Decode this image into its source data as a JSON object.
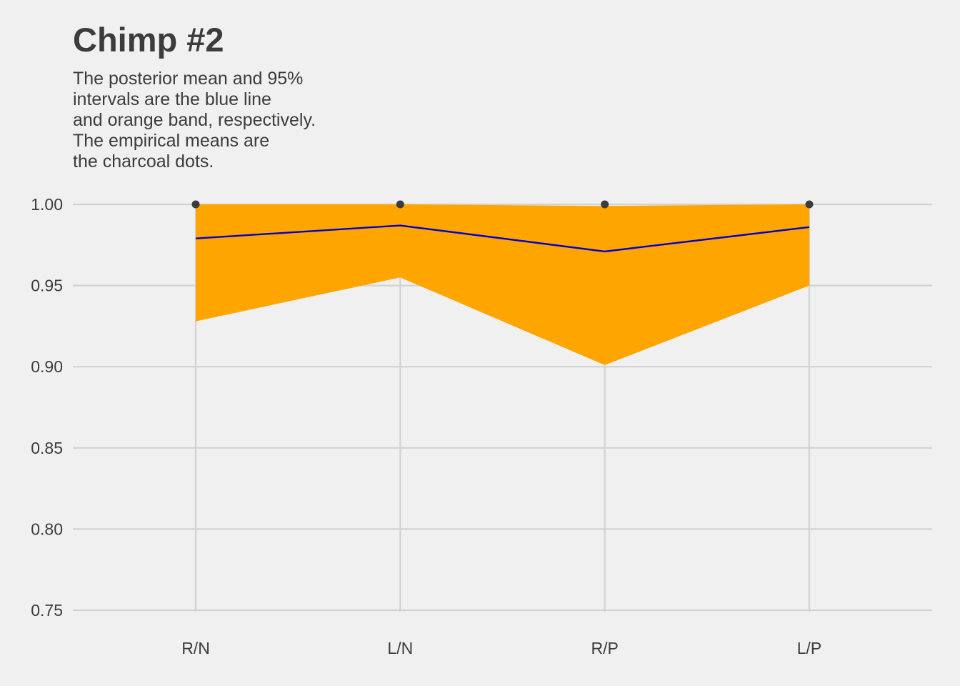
{
  "chart_data": {
    "type": "line",
    "title": "Chimp #2",
    "subtitle_lines": [
      "The posterior mean and 95%",
      "intervals are the blue line",
      "and orange band, respectively.",
      "The empirical means are",
      "the charcoal dots."
    ],
    "xlabel": "",
    "ylabel": "",
    "categories": [
      "R/N",
      "L/N",
      "R/P",
      "L/P"
    ],
    "ylim": [
      0.75,
      1.0
    ],
    "yticks": [
      0.75,
      0.8,
      0.85,
      0.9,
      0.95,
      1.0
    ],
    "ytick_labels": [
      "0.75",
      "0.80",
      "0.85",
      "0.90",
      "0.95",
      "1.00"
    ],
    "grid": true,
    "legend": "none",
    "series": [
      {
        "kind": "band",
        "lower": [
          0.928,
          0.955,
          0.901,
          0.95
        ],
        "upper": [
          1.0,
          1.0,
          0.999,
          1.0
        ],
        "color": "#ffa500"
      },
      {
        "kind": "line",
        "values": [
          0.979,
          0.987,
          0.971,
          0.986
        ],
        "color": "#0000cd"
      },
      {
        "kind": "points",
        "values": [
          1.0,
          1.0,
          1.0,
          1.0
        ],
        "color": "#3c3c3c"
      }
    ],
    "colors": {
      "background": "#f0f0f0",
      "grid": "#d2d2d2",
      "text": "#3c3c3c"
    }
  }
}
